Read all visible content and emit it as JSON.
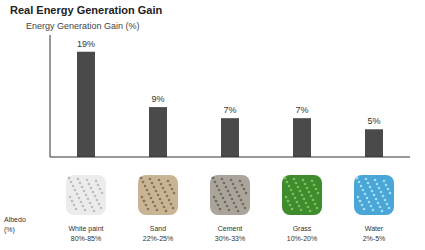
{
  "chart_data": {
    "type": "bar",
    "title": "Real Energy Generation Gain",
    "y_label": "Energy Generation Gain (%)",
    "categories": [
      "White paint",
      "Sand",
      "Cement",
      "Grass",
      "Water"
    ],
    "values": [
      19,
      9,
      7,
      7,
      5
    ],
    "value_labels": [
      "19%",
      "9%",
      "7%",
      "7%",
      "5%"
    ],
    "data_labels": true,
    "color": "#4a4a4a",
    "ylim": [
      0,
      22
    ],
    "tick_labels": "x",
    "albedo_label": "Albedo (%)",
    "albedo": [
      "80%-85%",
      "22%-25%",
      "30%-33%",
      "10%-20%",
      "2%-5%"
    ]
  }
}
